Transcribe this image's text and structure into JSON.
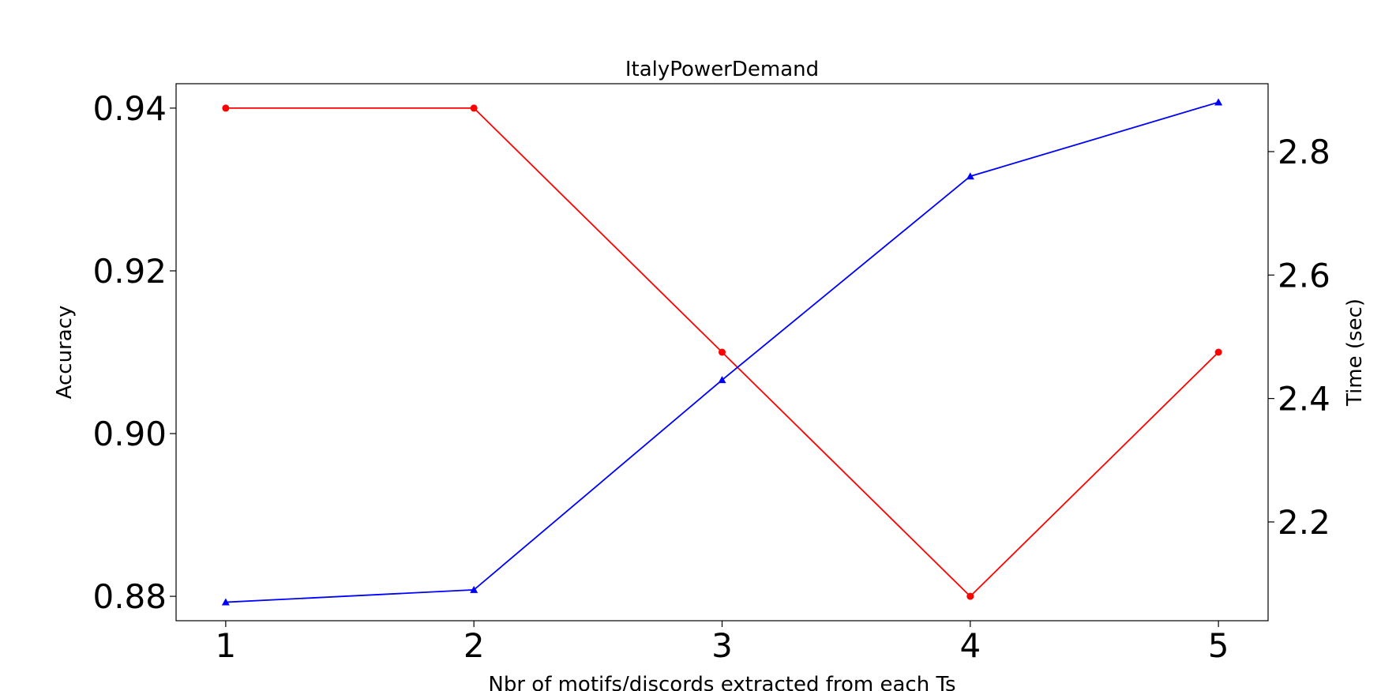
{
  "chart_data": {
    "type": "line",
    "title": "ItalyPowerDemand",
    "xlabel": "Nbr of motifs/discords extracted from each Ts",
    "ylabel_left": "Accuracy",
    "ylabel_right": "Time (sec)",
    "x": [
      1,
      2,
      3,
      4,
      5
    ],
    "x_ticks": [
      "1",
      "2",
      "3",
      "4",
      "5"
    ],
    "xlim": [
      0.8,
      5.2
    ],
    "y_left_ticks": [
      "0.88",
      "0.90",
      "0.92",
      "0.94"
    ],
    "y_left_tick_values": [
      0.88,
      0.9,
      0.92,
      0.94
    ],
    "ylim_left": [
      0.877,
      0.943
    ],
    "y_right_ticks": [
      "2.2",
      "2.4",
      "2.6",
      "2.8"
    ],
    "y_right_tick_values": [
      2.2,
      2.4,
      2.6,
      2.8
    ],
    "ylim_right": [
      2.04,
      2.91
    ],
    "grid": false,
    "series": [
      {
        "axis": "left",
        "color": "#ff0000",
        "marker": "circle",
        "values": [
          0.94,
          0.94,
          0.91,
          0.88,
          0.91
        ]
      },
      {
        "axis": "right",
        "color": "#0000ff",
        "marker": "triangle",
        "values": [
          2.07,
          2.09,
          2.43,
          2.76,
          2.88
        ]
      }
    ]
  }
}
